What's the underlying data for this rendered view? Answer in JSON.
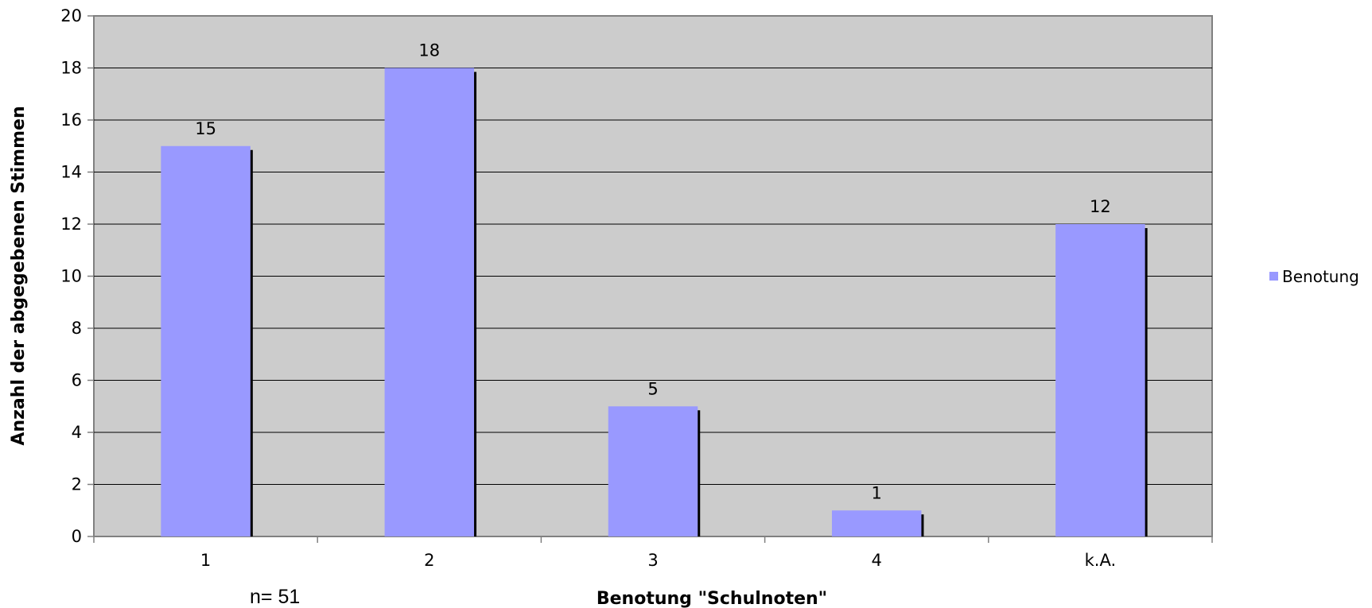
{
  "chart_data": {
    "type": "bar",
    "categories": [
      "1",
      "2",
      "3",
      "4",
      "k.A."
    ],
    "series": [
      {
        "name": "Benotung",
        "values": [
          15,
          18,
          5,
          1,
          12
        ]
      }
    ],
    "data_labels": [
      "15",
      "18",
      "5",
      "1",
      "12"
    ],
    "xlabel": "Benotung \"Schulnoten\"",
    "ylabel": "Anzahl der abgegebenen Stimmen",
    "ylim": [
      0,
      20
    ],
    "yticks": [
      0,
      2,
      4,
      6,
      8,
      10,
      12,
      14,
      16,
      18,
      20
    ],
    "grid": true,
    "legend": "right",
    "note": "n= 51"
  },
  "colors": {
    "plot_background": "#cccccc",
    "bar": "#9999ff",
    "bar_shadow": "#000000",
    "gridline": "#000000",
    "axis": "#808080"
  }
}
